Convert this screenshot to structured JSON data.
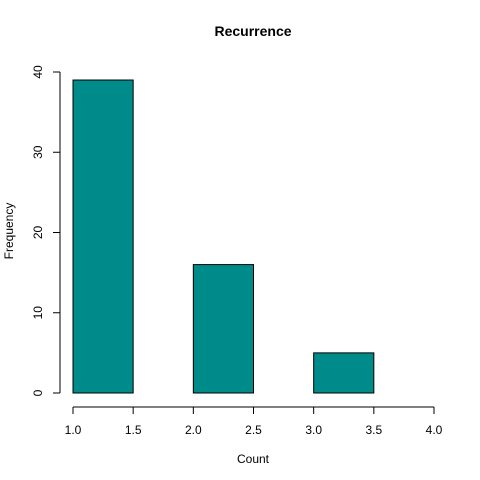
{
  "chart_data": {
    "type": "bar",
    "title": "Recurrence",
    "xlabel": "Count",
    "ylabel": "Frequency",
    "bins": [
      {
        "x0": 1.0,
        "x1": 1.5,
        "value": 39
      },
      {
        "x0": 1.5,
        "x1": 2.0,
        "value": 0
      },
      {
        "x0": 2.0,
        "x1": 2.5,
        "value": 16
      },
      {
        "x0": 2.5,
        "x1": 3.0,
        "value": 0
      },
      {
        "x0": 3.0,
        "x1": 3.5,
        "value": 5
      },
      {
        "x0": 3.5,
        "x1": 4.0,
        "value": 0
      }
    ],
    "xlim": [
      1.0,
      4.0
    ],
    "ylim": [
      0,
      40
    ],
    "x_ticks": [
      "1.0",
      "1.5",
      "2.0",
      "2.5",
      "3.0",
      "3.5",
      "4.0"
    ],
    "y_ticks": [
      "0",
      "10",
      "20",
      "30",
      "40"
    ],
    "bar_color": "#008B8B",
    "grid": false,
    "legend": "none"
  }
}
